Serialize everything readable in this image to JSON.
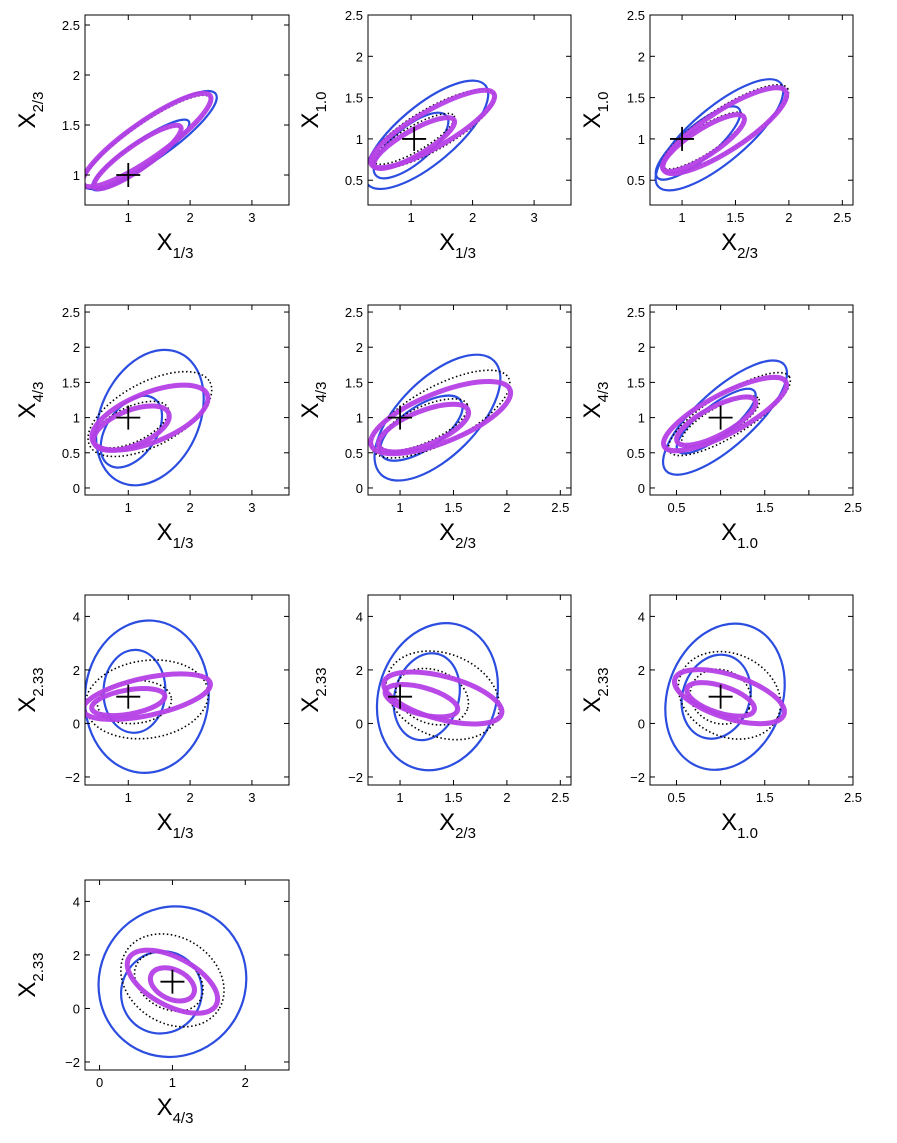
{
  "chart_data": [
    {
      "type": "contour",
      "xlabel": {
        "main": "X",
        "sub": "1/3"
      },
      "ylabel": {
        "main": "X",
        "sub": "2/3"
      },
      "xlim": [
        0.3,
        3.6
      ],
      "ylim": [
        0.7,
        2.6
      ],
      "xticks": [
        "1",
        "2",
        "3"
      ],
      "yticks": [
        "1",
        "1.5",
        "2",
        "2.5"
      ],
      "marker": [
        1,
        1
      ],
      "ellipses": [
        {
          "color": "blue",
          "cx": 1.2,
          "cy": 1.2,
          "rx": 0.95,
          "ry": 0.13,
          "angle": 35
        },
        {
          "color": "blue",
          "cx": 1.35,
          "cy": 1.35,
          "rx": 1.3,
          "ry": 0.2,
          "angle": 35
        },
        {
          "color": "dotted",
          "cx": 1.15,
          "cy": 1.17,
          "rx": 0.85,
          "ry": 0.12,
          "angle": 35
        },
        {
          "color": "dotted",
          "cx": 1.3,
          "cy": 1.33,
          "rx": 1.25,
          "ry": 0.18,
          "angle": 35
        },
        {
          "color": "magenta",
          "cx": 1.15,
          "cy": 1.18,
          "rx": 0.85,
          "ry": 0.12,
          "angle": 35
        },
        {
          "color": "magenta",
          "cx": 1.3,
          "cy": 1.35,
          "rx": 1.25,
          "ry": 0.18,
          "angle": 35
        }
      ]
    },
    {
      "type": "contour",
      "xlabel": {
        "main": "X",
        "sub": "1/3"
      },
      "ylabel": {
        "main": "X",
        "sub": "1.0"
      },
      "xlim": [
        0.3,
        3.6
      ],
      "ylim": [
        0.2,
        2.5
      ],
      "xticks": [
        "1",
        "2",
        "3"
      ],
      "yticks": [
        "0.5",
        "1",
        "1.5",
        "2",
        "2.5"
      ],
      "marker": [
        1.05,
        1
      ],
      "ellipses": [
        {
          "color": "blue",
          "cx": 1.0,
          "cy": 0.92,
          "rx": 0.75,
          "ry": 0.22,
          "angle": 40
        },
        {
          "color": "blue",
          "cx": 1.25,
          "cy": 1.05,
          "rx": 1.25,
          "ry": 0.35,
          "angle": 40
        },
        {
          "color": "dotted",
          "cx": 1.05,
          "cy": 1.0,
          "rx": 0.75,
          "ry": 0.15,
          "angle": 30
        },
        {
          "color": "dotted",
          "cx": 1.35,
          "cy": 1.12,
          "rx": 1.15,
          "ry": 0.25,
          "angle": 30
        },
        {
          "color": "magenta",
          "cx": 1.05,
          "cy": 0.95,
          "rx": 0.75,
          "ry": 0.15,
          "angle": 30
        },
        {
          "color": "magenta",
          "cx": 1.35,
          "cy": 1.12,
          "rx": 1.15,
          "ry": 0.22,
          "angle": 30
        }
      ]
    },
    {
      "type": "contour",
      "xlabel": {
        "main": "X",
        "sub": "2/3"
      },
      "ylabel": {
        "main": "X",
        "sub": "1.0"
      },
      "xlim": [
        0.7,
        2.6
      ],
      "ylim": [
        0.2,
        2.5
      ],
      "xticks": [
        "1",
        "1.5",
        "2",
        "2.5"
      ],
      "yticks": [
        "0.5",
        "1",
        "1.5",
        "2",
        "2.5"
      ],
      "marker": [
        1,
        1
      ],
      "ellipses": [
        {
          "color": "blue",
          "cx": 1.15,
          "cy": 0.95,
          "rx": 0.5,
          "ry": 0.2,
          "angle": 40
        },
        {
          "color": "blue",
          "cx": 1.35,
          "cy": 1.05,
          "rx": 0.75,
          "ry": 0.33,
          "angle": 40
        },
        {
          "color": "dotted",
          "cx": 1.2,
          "cy": 0.98,
          "rx": 0.45,
          "ry": 0.16,
          "angle": 33
        },
        {
          "color": "dotted",
          "cx": 1.4,
          "cy": 1.12,
          "rx": 0.7,
          "ry": 0.25,
          "angle": 33
        },
        {
          "color": "magenta",
          "cx": 1.2,
          "cy": 0.95,
          "rx": 0.45,
          "ry": 0.16,
          "angle": 33
        },
        {
          "color": "magenta",
          "cx": 1.4,
          "cy": 1.1,
          "rx": 0.68,
          "ry": 0.24,
          "angle": 33
        }
      ]
    },
    {
      "type": "contour",
      "xlabel": {
        "main": "X",
        "sub": "1/3"
      },
      "ylabel": {
        "main": "X",
        "sub": "4/3"
      },
      "xlim": [
        0.3,
        3.6
      ],
      "ylim": [
        -0.1,
        2.6
      ],
      "xticks": [
        "1",
        "2",
        "3"
      ],
      "yticks": [
        "0",
        "0.5",
        "1",
        "1.5",
        "2",
        "2.5"
      ],
      "marker": [
        1,
        1
      ],
      "ellipses": [
        {
          "color": "blue",
          "cx": 1.05,
          "cy": 0.8,
          "rx": 0.65,
          "ry": 0.35,
          "angle": 55
        },
        {
          "color": "blue",
          "cx": 1.35,
          "cy": 1.0,
          "rx": 1.15,
          "ry": 0.7,
          "angle": 65
        },
        {
          "color": "dotted",
          "cx": 1.05,
          "cy": 0.9,
          "rx": 0.65,
          "ry": 0.25,
          "angle": 25
        },
        {
          "color": "dotted",
          "cx": 1.35,
          "cy": 1.05,
          "rx": 1.1,
          "ry": 0.45,
          "angle": 28
        },
        {
          "color": "magenta",
          "cx": 1.05,
          "cy": 0.85,
          "rx": 0.65,
          "ry": 0.25,
          "angle": 22
        },
        {
          "color": "magenta",
          "cx": 1.35,
          "cy": 1.0,
          "rx": 1.0,
          "ry": 0.35,
          "angle": 22
        }
      ]
    },
    {
      "type": "contour",
      "xlabel": {
        "main": "X",
        "sub": "2/3"
      },
      "ylabel": {
        "main": "X",
        "sub": "4/3"
      },
      "xlim": [
        0.7,
        2.6
      ],
      "ylim": [
        -0.1,
        2.6
      ],
      "xticks": [
        "1",
        "1.5",
        "2",
        "2.5"
      ],
      "yticks": [
        "0",
        "0.5",
        "1",
        "1.5",
        "2",
        "2.5"
      ],
      "marker": [
        1,
        1
      ],
      "ellipses": [
        {
          "color": "blue",
          "cx": 1.2,
          "cy": 0.85,
          "rx": 0.45,
          "ry": 0.3,
          "angle": 35
        },
        {
          "color": "blue",
          "cx": 1.35,
          "cy": 1.0,
          "rx": 0.75,
          "ry": 0.55,
          "angle": 45
        },
        {
          "color": "dotted",
          "cx": 1.22,
          "cy": 0.9,
          "rx": 0.45,
          "ry": 0.25,
          "angle": 25
        },
        {
          "color": "dotted",
          "cx": 1.38,
          "cy": 1.05,
          "rx": 0.72,
          "ry": 0.4,
          "angle": 28
        },
        {
          "color": "magenta",
          "cx": 1.22,
          "cy": 0.85,
          "rx": 0.45,
          "ry": 0.24,
          "angle": 22
        },
        {
          "color": "magenta",
          "cx": 1.38,
          "cy": 1.0,
          "rx": 0.7,
          "ry": 0.35,
          "angle": 22
        }
      ]
    },
    {
      "type": "contour",
      "xlabel": {
        "main": "X",
        "sub": "1.0"
      },
      "ylabel": {
        "main": "X",
        "sub": "4/3"
      },
      "xlim": [
        0.2,
        2.5
      ],
      "ylim": [
        -0.1,
        2.6
      ],
      "xticks": [
        "0.5",
        "1",
        "1.5",
        "2",
        "2.5"
      ],
      "xtick_values": [
        0.5,
        1.0,
        1.5,
        2.0,
        2.5
      ],
      "xtick_labels": [
        "0.5",
        "",
        "1.5",
        "",
        "2.5"
      ],
      "yticks": [
        "0",
        "0.5",
        "1",
        "1.5",
        "2",
        "2.5"
      ],
      "marker": [
        1,
        1
      ],
      "ellipses": [
        {
          "color": "blue",
          "cx": 0.95,
          "cy": 0.95,
          "rx": 0.55,
          "ry": 0.22,
          "angle": 38
        },
        {
          "color": "blue",
          "cx": 1.05,
          "cy": 1.0,
          "rx": 0.9,
          "ry": 0.4,
          "angle": 42
        },
        {
          "color": "dotted",
          "cx": 1.0,
          "cy": 0.95,
          "rx": 0.5,
          "ry": 0.2,
          "angle": 30
        },
        {
          "color": "dotted",
          "cx": 1.1,
          "cy": 1.05,
          "rx": 0.8,
          "ry": 0.3,
          "angle": 32
        },
        {
          "color": "magenta",
          "cx": 0.95,
          "cy": 0.95,
          "rx": 0.5,
          "ry": 0.2,
          "angle": 28
        },
        {
          "color": "magenta",
          "cx": 1.05,
          "cy": 1.05,
          "rx": 0.78,
          "ry": 0.28,
          "angle": 28
        }
      ]
    },
    {
      "type": "contour",
      "xlabel": {
        "main": "X",
        "sub": "1/3"
      },
      "ylabel": {
        "main": "X",
        "sub": "2.33"
      },
      "xlim": [
        0.3,
        3.6
      ],
      "ylim": [
        -2.3,
        4.8
      ],
      "xticks": [
        "1",
        "2",
        "3"
      ],
      "yticks": [
        "-2",
        "0",
        "2",
        "4"
      ],
      "marker": [
        1,
        1
      ],
      "ellipses": [
        {
          "color": "blue",
          "cx": 1.1,
          "cy": 1.2,
          "rx": 0.5,
          "ry": 1.55,
          "angle": -2
        },
        {
          "color": "blue",
          "cx": 1.3,
          "cy": 1.0,
          "rx": 1.0,
          "ry": 2.85,
          "angle": -5
        },
        {
          "color": "dotted",
          "cx": 1.1,
          "cy": 0.8,
          "rx": 0.6,
          "ry": 0.8,
          "angle": 5
        },
        {
          "color": "dotted",
          "cx": 1.3,
          "cy": 0.9,
          "rx": 1.0,
          "ry": 1.45,
          "angle": 8
        },
        {
          "color": "magenta",
          "cx": 1.0,
          "cy": 0.8,
          "rx": 0.6,
          "ry": 0.45,
          "angle": 10
        },
        {
          "color": "magenta",
          "cx": 1.3,
          "cy": 1.0,
          "rx": 1.05,
          "ry": 0.7,
          "angle": 12
        }
      ]
    },
    {
      "type": "contour",
      "xlabel": {
        "main": "X",
        "sub": "2/3"
      },
      "ylabel": {
        "main": "X",
        "sub": "2.33"
      },
      "xlim": [
        0.7,
        2.6
      ],
      "ylim": [
        -2.3,
        4.8
      ],
      "xticks": [
        "1",
        "1.5",
        "2",
        "2.5"
      ],
      "yticks": [
        "-2",
        "0",
        "2",
        "4"
      ],
      "marker": [
        1,
        1
      ],
      "ellipses": [
        {
          "color": "blue",
          "cx": 1.25,
          "cy": 1.0,
          "rx": 0.3,
          "ry": 1.65,
          "angle": -15
        },
        {
          "color": "blue",
          "cx": 1.35,
          "cy": 1.0,
          "rx": 0.55,
          "ry": 2.8,
          "angle": -18
        },
        {
          "color": "dotted",
          "cx": 1.3,
          "cy": 1.0,
          "rx": 0.35,
          "ry": 1.0,
          "angle": -20
        },
        {
          "color": "dotted",
          "cx": 1.4,
          "cy": 1.05,
          "rx": 0.55,
          "ry": 1.55,
          "angle": -22
        },
        {
          "color": "magenta",
          "cx": 1.2,
          "cy": 0.85,
          "rx": 0.35,
          "ry": 0.5,
          "angle": -15
        },
        {
          "color": "magenta",
          "cx": 1.4,
          "cy": 0.95,
          "rx": 0.57,
          "ry": 0.8,
          "angle": -15
        }
      ]
    },
    {
      "type": "contour",
      "xlabel": {
        "main": "X",
        "sub": "1.0"
      },
      "ylabel": {
        "main": "X",
        "sub": "2.33"
      },
      "xlim": [
        0.2,
        2.5
      ],
      "ylim": [
        -2.3,
        4.8
      ],
      "xticks": [
        "0.5",
        "1",
        "1.5",
        "2",
        "2.5"
      ],
      "xtick_values": [
        0.5,
        1.0,
        1.5,
        2.0,
        2.5
      ],
      "xtick_labels": [
        "0.5",
        "",
        "1.5",
        "",
        "2.5"
      ],
      "yticks": [
        "-2",
        "0",
        "2",
        "4"
      ],
      "marker": [
        1,
        1
      ],
      "ellipses": [
        {
          "color": "blue",
          "cx": 0.95,
          "cy": 1.0,
          "rx": 0.38,
          "ry": 1.6,
          "angle": -18
        },
        {
          "color": "blue",
          "cx": 1.05,
          "cy": 1.0,
          "rx": 0.65,
          "ry": 2.8,
          "angle": -20
        },
        {
          "color": "dotted",
          "cx": 1.0,
          "cy": 1.0,
          "rx": 0.35,
          "ry": 1.0,
          "angle": -22
        },
        {
          "color": "dotted",
          "cx": 1.1,
          "cy": 1.05,
          "rx": 0.6,
          "ry": 1.55,
          "angle": -25
        },
        {
          "color": "magenta",
          "cx": 1.0,
          "cy": 0.9,
          "rx": 0.4,
          "ry": 0.5,
          "angle": -18
        },
        {
          "color": "magenta",
          "cx": 1.1,
          "cy": 1.0,
          "rx": 0.65,
          "ry": 0.8,
          "angle": -18
        }
      ]
    },
    {
      "type": "contour",
      "xlabel": {
        "main": "X",
        "sub": "4/3"
      },
      "ylabel": {
        "main": "X",
        "sub": "2.33"
      },
      "xlim": [
        -0.2,
        2.6
      ],
      "ylim": [
        -2.3,
        4.8
      ],
      "xticks": [
        "0",
        "1",
        "2"
      ],
      "yticks": [
        "-2",
        "0",
        "2",
        "4"
      ],
      "marker": [
        1,
        1
      ],
      "ellipses": [
        {
          "color": "blue",
          "cx": 0.85,
          "cy": 0.6,
          "rx": 0.55,
          "ry": 1.55,
          "angle": -30
        },
        {
          "color": "blue",
          "cx": 1.0,
          "cy": 1.0,
          "rx": 1.0,
          "ry": 2.85,
          "angle": -33
        },
        {
          "color": "dotted",
          "cx": 0.95,
          "cy": 1.0,
          "rx": 0.5,
          "ry": 1.0,
          "angle": -30
        },
        {
          "color": "dotted",
          "cx": 1.0,
          "cy": 1.05,
          "rx": 0.75,
          "ry": 1.6,
          "angle": -32
        },
        {
          "color": "magenta",
          "cx": 1.0,
          "cy": 0.9,
          "rx": 0.32,
          "ry": 0.55,
          "angle": -25
        },
        {
          "color": "magenta",
          "cx": 1.0,
          "cy": 1.0,
          "rx": 0.68,
          "ry": 0.9,
          "angle": -28
        }
      ]
    }
  ],
  "colors": {
    "blue": "#2b4de0",
    "magenta": "#b540e6",
    "dotted": "#000000"
  }
}
